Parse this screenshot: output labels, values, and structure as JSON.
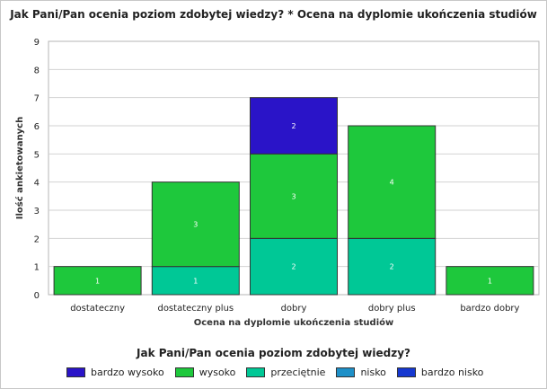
{
  "chart_data": {
    "type": "bar",
    "stacked": true,
    "title": "Jak Pani/Pan ocenia poziom zdobytej wiedzy? * Ocena na dyplomie ukończenia studiów",
    "xlabel": "Ocena na dyplomie ukończenia studiów",
    "ylabel": "Ilość ankietowanych",
    "ylim": [
      0,
      9
    ],
    "yticks": [
      0,
      1,
      2,
      3,
      4,
      5,
      6,
      7,
      8,
      9
    ],
    "grid": true,
    "categories": [
      "dostateczny",
      "dostateczny plus",
      "dobry",
      "dobry plus",
      "bardzo dobry"
    ],
    "series": [
      {
        "name": "nisko",
        "color": "#1e90c8",
        "values": [
          0,
          0,
          0,
          0,
          0
        ]
      },
      {
        "name": "bardzo nisko",
        "color": "#1638d0",
        "values": [
          0,
          0,
          0,
          0,
          0
        ]
      },
      {
        "name": "przeciętnie",
        "color": "#00c896",
        "values": [
          0,
          1,
          2,
          2,
          0
        ]
      },
      {
        "name": "wysoko",
        "color": "#1ec83c",
        "values": [
          1,
          3,
          3,
          4,
          1
        ]
      },
      {
        "name": "bardzo wysoko",
        "color": "#2a14c8",
        "values": [
          0,
          0,
          2,
          0,
          0
        ]
      }
    ],
    "legend": {
      "title": "Jak Pani/Pan ocenia poziom zdobytej wiedzy?",
      "placement": "bottom",
      "entries": [
        {
          "label": "bardzo wysoko",
          "color": "#2a14c8"
        },
        {
          "label": "wysoko",
          "color": "#1ec83c"
        },
        {
          "label": "przeciętnie",
          "color": "#00c896"
        },
        {
          "label": "nisko",
          "color": "#1e90c8"
        },
        {
          "label": "bardzo nisko",
          "color": "#1638d0"
        }
      ]
    }
  }
}
